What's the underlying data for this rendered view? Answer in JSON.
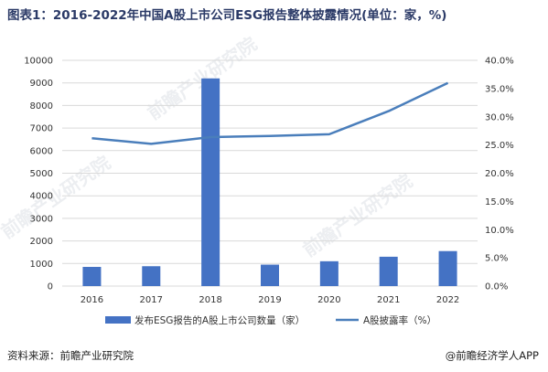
{
  "title": "图表1：2016-2022年中国A股上市公司ESG报告整体披露情况(单位：家，%)",
  "source": "资料来源：前瞻产业研究院",
  "brand": "@前瞻经济学人APP",
  "watermark": "前瞻产业研究院",
  "colors": {
    "bar": "#4472c4",
    "line": "#4a7ebb",
    "grid": "#d9d9d9"
  },
  "chart_data": {
    "type": "bar",
    "categories": [
      "2016",
      "2017",
      "2018",
      "2019",
      "2020",
      "2021",
      "2022"
    ],
    "series": [
      {
        "name": "发布ESG报告的A股上市公司数量（家）",
        "type": "bar",
        "axis": "left",
        "values": [
          850,
          880,
          9200,
          950,
          1100,
          1300,
          1550
        ]
      },
      {
        "name": "A股披露率（%）",
        "type": "line",
        "axis": "right",
        "values": [
          26.2,
          25.2,
          26.4,
          26.6,
          26.9,
          31.0,
          36.0
        ]
      }
    ],
    "ylim_left": [
      0,
      10000
    ],
    "ylim_right": [
      0,
      40
    ],
    "yticks_left": [
      "0",
      "1000",
      "2000",
      "3000",
      "4000",
      "5000",
      "6000",
      "7000",
      "8000",
      "9000",
      "10000"
    ],
    "yticks_right": [
      "0.0%",
      "5.0%",
      "10.0%",
      "15.0%",
      "20.0%",
      "25.0%",
      "30.0%",
      "35.0%",
      "40.0%"
    ],
    "grid": true,
    "legend": "bottom"
  }
}
